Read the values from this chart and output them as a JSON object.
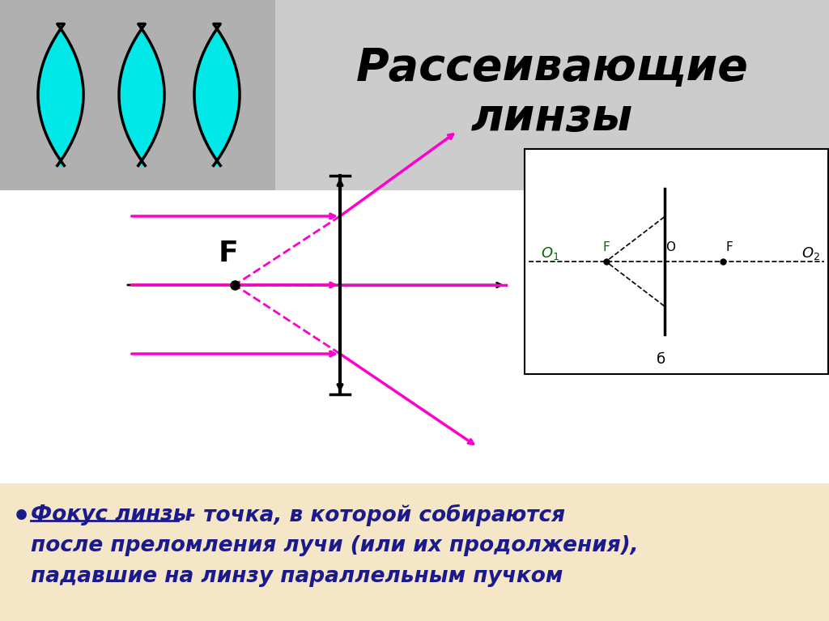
{
  "title": "Рассеивающие\nлинзы",
  "bg_color": "#ffffff",
  "top_bg": "#b0b0b0",
  "top_right_bg": "#d0d0d0",
  "bottom_bg": "#f5e6c8",
  "cyan_color": "#00e8e8",
  "magenta_color": "#ff00cc",
  "dark_color": "#000000",
  "text_color_blue": "#1a1a8c",
  "bottom_text_fokus": "Фокус линзы",
  "bottom_text_rest1": " - точка, в которой собираются",
  "bottom_text_rest2": "после преломления лучи (или их продолжения),",
  "bottom_text_rest3": "падавшие на линзу параллельным пучком"
}
